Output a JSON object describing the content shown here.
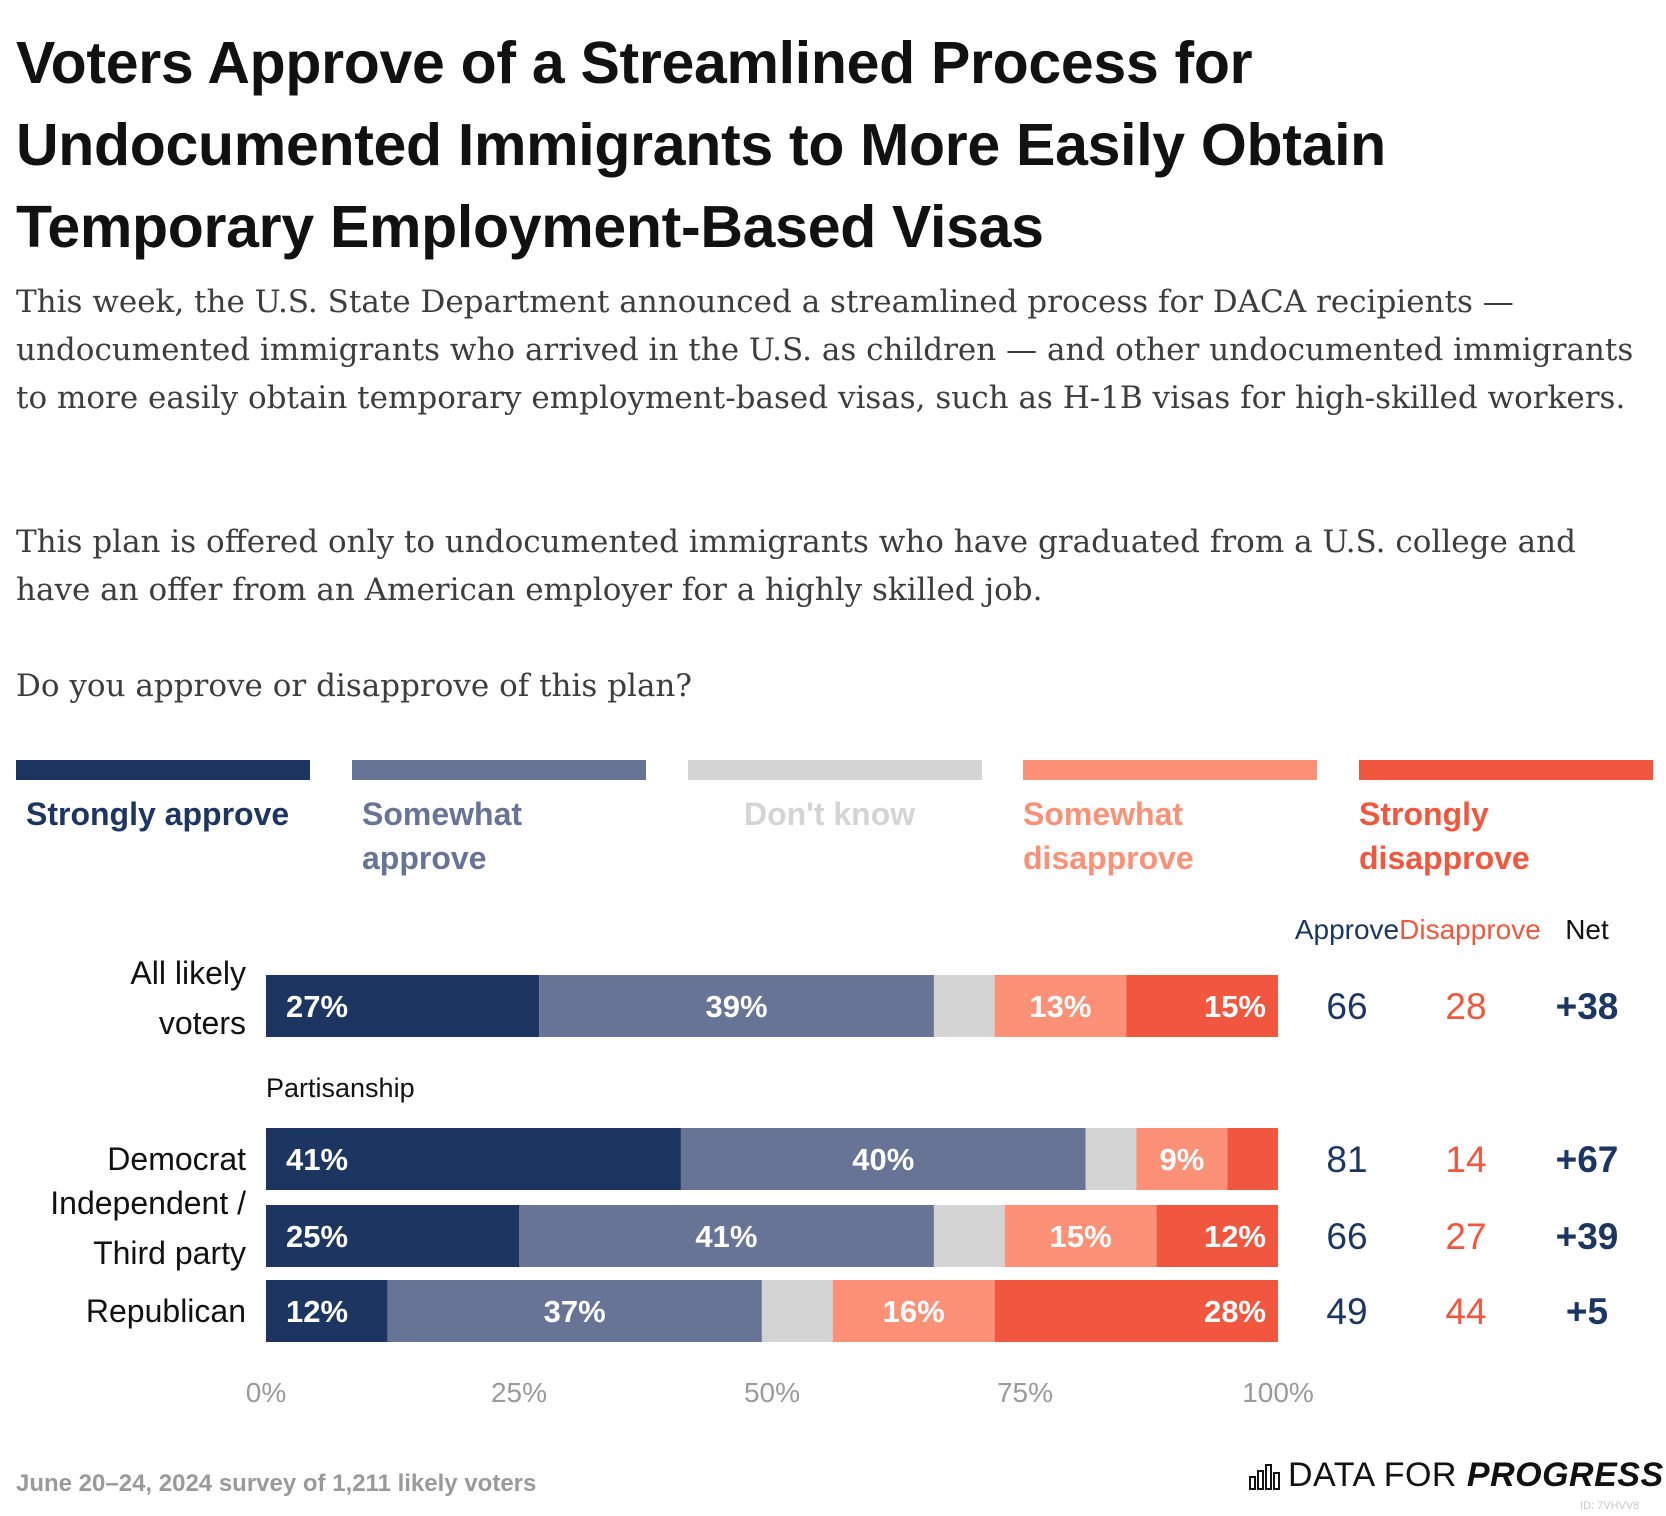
{
  "title": "Voters Approve of a Streamlined Process for Undocumented Immigrants to More Easily Obtain Temporary Employment-Based Visas",
  "description": [
    "This week, the U.S. State Department announced a streamlined process for DACA recipients — undocumented immigrants who arrived in the U.S. as children — and other undocumented immigrants to more easily obtain temporary employment-based visas, such as H-1B visas for high-skilled workers.",
    "This plan is offered only to undocumented immigrants who have graduated from a U.S. college and have an offer from an American employer for a highly skilled job.",
    "Do you approve or disapprove of this plan?"
  ],
  "legend": [
    {
      "label": "Strongly approve",
      "color": "#1c3661",
      "text_color": "#1c3661"
    },
    {
      "label": "Somewhat approve",
      "color": "#687496",
      "text_color": "#687496"
    },
    {
      "label": "Don't know",
      "color": "#d4d4d4",
      "text_color": "#d4d4d4"
    },
    {
      "label": "Somewhat disapprove",
      "color": "#fc9178",
      "text_color": "#fc9178"
    },
    {
      "label": "Strongly disapprove",
      "color": "#f0573e",
      "text_color": "#f0573e"
    }
  ],
  "summary_headers": {
    "approve": "Approve",
    "disapprove": "Disapprove",
    "net": "Net"
  },
  "summary_colors": {
    "approve": "#1c3661",
    "disapprove": "#f0573e",
    "net": "#1c3661"
  },
  "chart_data": {
    "type": "bar",
    "orientation": "horizontal-stacked",
    "series_names": [
      "Strongly approve",
      "Somewhat approve",
      "Don't know",
      "Somewhat disapprove",
      "Strongly disapprove"
    ],
    "groups": [
      {
        "label": "",
        "rows": [
          {
            "label": "All likely voters",
            "values": [
              27,
              39,
              6,
              13,
              15
            ],
            "value_labels": [
              "27%",
              "39%",
              "",
              "13%",
              "15%"
            ],
            "approve": "66",
            "disapprove": "28",
            "net": "+38"
          }
        ]
      },
      {
        "label": "Partisanship",
        "rows": [
          {
            "label": "Democrat",
            "values": [
              41,
              40,
              5,
              9,
              5
            ],
            "value_labels": [
              "41%",
              "40%",
              "",
              "9%",
              ""
            ],
            "approve": "81",
            "disapprove": "14",
            "net": "+67"
          },
          {
            "label": "Independent / Third party",
            "values": [
              25,
              41,
              7,
              15,
              12
            ],
            "value_labels": [
              "25%",
              "41%",
              "",
              "15%",
              "12%"
            ],
            "approve": "66",
            "disapprove": "27",
            "net": "+39"
          },
          {
            "label": "Republican",
            "values": [
              12,
              37,
              7,
              16,
              28
            ],
            "value_labels": [
              "12%",
              "37%",
              "",
              "16%",
              "28%"
            ],
            "approve": "49",
            "disapprove": "44",
            "net": "+5"
          }
        ]
      }
    ],
    "x_ticks": [
      0,
      25,
      50,
      75,
      100
    ],
    "x_tick_labels": [
      "0%",
      "25%",
      "50%",
      "75%",
      "100%"
    ],
    "xlim": [
      0,
      100
    ]
  },
  "footer": "June 20–24, 2024 survey of 1,211 likely voters",
  "brand": {
    "part1": "DATA FOR ",
    "part2": "PROGRESS"
  },
  "chart_id": "ID: 7VHVV8"
}
